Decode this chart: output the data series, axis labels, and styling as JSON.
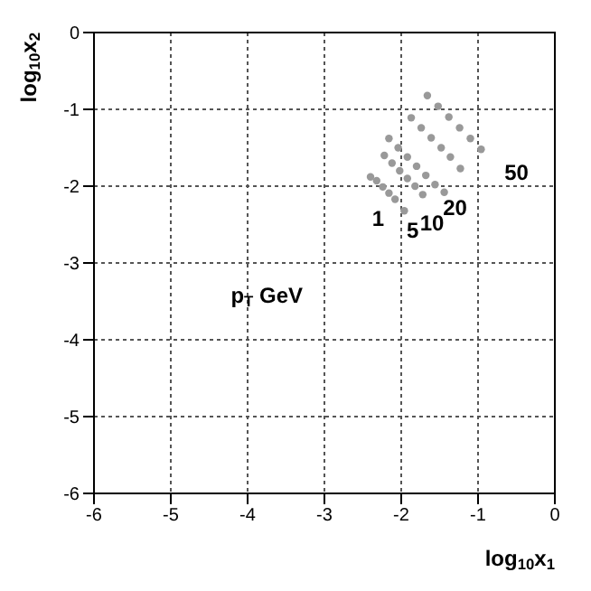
{
  "chart_data": {
    "type": "scatter",
    "xlabel": "log$_{10}$x$_{1}$",
    "ylabel": "log$_{10}$x$_{2}$",
    "xlim": [
      -6,
      0
    ],
    "ylim": [
      -6,
      0
    ],
    "xticks": [
      -6,
      -5,
      -4,
      -3,
      -2,
      -1,
      0
    ],
    "yticks": [
      -6,
      -5,
      -4,
      -3,
      -2,
      -1,
      0
    ],
    "grid": true,
    "marker": "circle",
    "series": [
      {
        "color": "#999999",
        "x": [
          -2.4,
          -2.32,
          -2.24,
          -2.16,
          -2.08,
          -1.96
        ],
        "values": [
          -1.88,
          -1.93,
          -2.01,
          -2.09,
          -2.17,
          -2.32
        ]
      },
      {
        "color": "#999999",
        "x": [
          -2.22,
          -2.12,
          -2.02,
          -1.92,
          -1.82,
          -1.72
        ],
        "values": [
          -1.6,
          -1.7,
          -1.8,
          -1.9,
          -2.0,
          -2.11
        ]
      },
      {
        "color": "#999999",
        "x": [
          -2.16,
          -2.04,
          -1.92,
          -1.8,
          -1.68,
          -1.56,
          -1.44
        ],
        "values": [
          -1.38,
          -1.5,
          -1.62,
          -1.74,
          -1.86,
          -1.98,
          -2.08
        ]
      },
      {
        "color": "#999999",
        "x": [
          -1.87,
          -1.74,
          -1.61,
          -1.48,
          -1.36,
          -1.23
        ],
        "values": [
          -1.11,
          -1.24,
          -1.37,
          -1.5,
          -1.62,
          -1.77
        ]
      },
      {
        "color": "#999999",
        "x": [
          -1.66,
          -1.52,
          -1.38,
          -1.24,
          -1.1,
          -0.96
        ],
        "values": [
          -0.82,
          -0.96,
          -1.1,
          -1.24,
          -1.38,
          -1.52
        ]
      }
    ],
    "annotations": [
      "1",
      "5",
      "10",
      "20",
      "50",
      "p$_{T}$ GeV"
    ]
  }
}
